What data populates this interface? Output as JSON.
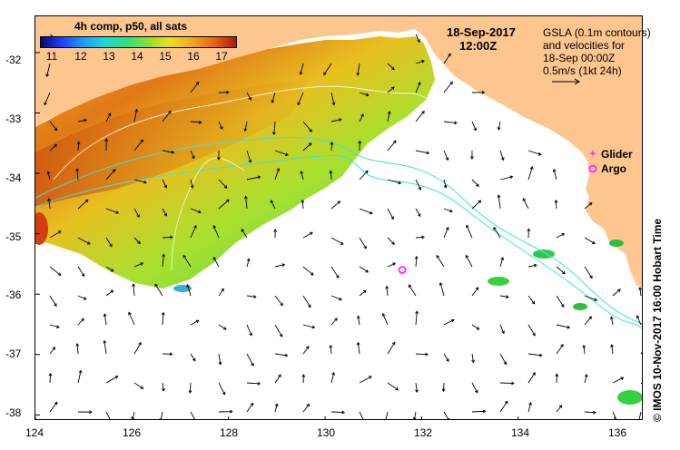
{
  "legend": {
    "title": "4h comp, p50, all sats",
    "colorbar_ticks": [
      "11",
      "12",
      "13",
      "14",
      "15",
      "16",
      "17"
    ]
  },
  "header": {
    "date": "18-Sep-2017",
    "time": "12:00Z"
  },
  "info": {
    "line1": "GSLA (0.1m contours)",
    "line2": "and velocities for",
    "line3": "18-Sep 00:00Z",
    "line4": "0.5m/s (1kt 24h)"
  },
  "markers": {
    "glider_label": "Glider",
    "argo_label": "Argo",
    "glider_color": "#ff33ff",
    "argo_color": "#ff33ff"
  },
  "axes": {
    "x_ticks": [
      "124",
      "126",
      "128",
      "130",
      "132",
      "134",
      "136"
    ],
    "y_ticks": [
      "-32",
      "-33",
      "-34",
      "-35",
      "-36",
      "-37",
      "-38"
    ]
  },
  "credit": "© IMOS 10-Nov-2017 16:00 Hobart Time",
  "colors": {
    "land": "#fdc68f",
    "contour": "#40e0e0"
  },
  "chart_data": {
    "type": "heatmap",
    "title": "4h comp, p50, all sats",
    "xlim": [
      124,
      136.6
    ],
    "ylim": [
      -38.1,
      -31.4
    ],
    "colorbar_range": [
      10.5,
      17.5
    ],
    "argo": {
      "lon": 131.6,
      "lat": -35.6
    }
  }
}
